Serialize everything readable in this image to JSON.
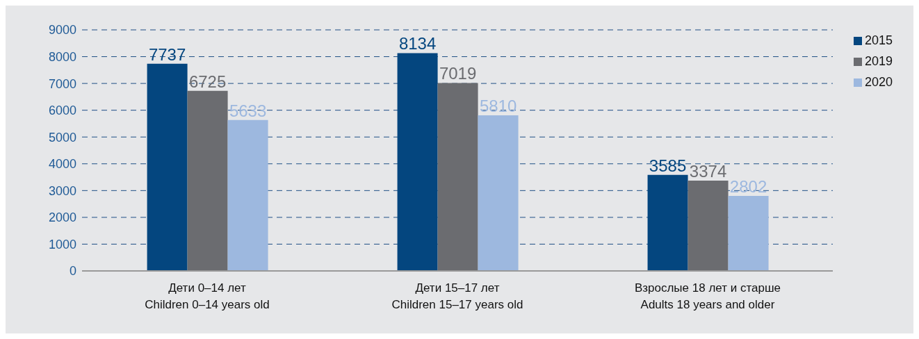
{
  "chart_data": {
    "type": "bar",
    "categories": [
      "Дети 0–14 лет\nChildren 0–14 years old",
      "Дети 15–17 лет\nChildren 15–17 years old",
      "Взрослые 18 лет и старше\nAdults 18 years and older"
    ],
    "series": [
      {
        "name": "2015",
        "color": "#04467f",
        "values": [
          7737,
          8134,
          3585
        ]
      },
      {
        "name": "2019",
        "color": "#6b6c70",
        "values": [
          6725,
          7019,
          3374
        ]
      },
      {
        "name": "2020",
        "color": "#9db8df",
        "values": [
          5633,
          5810,
          2802
        ]
      }
    ],
    "ylim": [
      0,
      9000
    ],
    "yticks": [
      0,
      1000,
      2000,
      3000,
      4000,
      5000,
      6000,
      7000,
      8000,
      9000
    ],
    "grid": "y",
    "legend": "top right",
    "data_labels": true
  }
}
